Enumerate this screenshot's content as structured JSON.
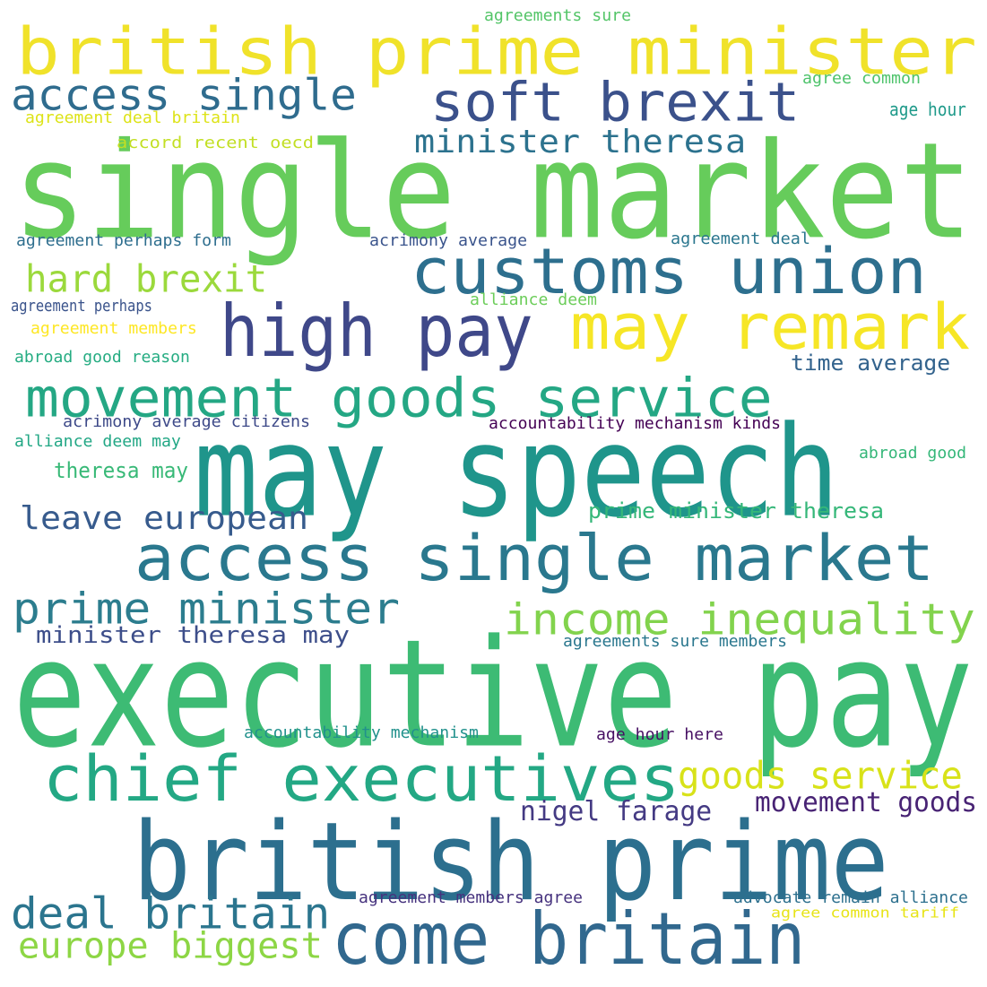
{
  "words": [
    {
      "text": "british prime minister",
      "color": "#f0e22a"
    },
    {
      "text": "single market",
      "color": "#66cc5b"
    },
    {
      "text": "executive pay",
      "color": "#3dbb74"
    },
    {
      "text": "may speech",
      "color": "#1f958b"
    },
    {
      "text": "british prime",
      "color": "#2c6f8e"
    },
    {
      "text": "access single market",
      "color": "#2a788e"
    },
    {
      "text": "customs union",
      "color": "#2d6f8e"
    },
    {
      "text": "chief executives",
      "color": "#23a884"
    },
    {
      "text": "high pay",
      "color": "#3f4889"
    },
    {
      "text": "may remark",
      "color": "#f6e626"
    },
    {
      "text": "come britain",
      "color": "#31688e"
    },
    {
      "text": "movement goods service",
      "color": "#24a784"
    },
    {
      "text": "soft brexit",
      "color": "#3b518b"
    },
    {
      "text": "access single",
      "color": "#2f6c8e"
    },
    {
      "text": "prime minister",
      "color": "#2c7d8e"
    },
    {
      "text": "income inequality",
      "color": "#82d34d"
    },
    {
      "text": "deal britain",
      "color": "#2b758e"
    },
    {
      "text": "goods service",
      "color": "#d8e219"
    },
    {
      "text": "hard brexit",
      "color": "#9bd93c"
    },
    {
      "text": "leave european",
      "color": "#375b8d"
    },
    {
      "text": "europe biggest",
      "color": "#8dd645"
    },
    {
      "text": "minister theresa",
      "color": "#2c728e"
    },
    {
      "text": "minister theresa may",
      "color": "#3d4e8a"
    },
    {
      "text": "nigel farage",
      "color": "#443a83"
    },
    {
      "text": "movement goods",
      "color": "#482374"
    },
    {
      "text": "prime minister theresa",
      "color": "#35b779"
    },
    {
      "text": "theresa may",
      "color": "#38b977"
    },
    {
      "text": "time average",
      "color": "#33638d"
    },
    {
      "text": "agreements sure",
      "color": "#54c568"
    },
    {
      "text": "agree common",
      "color": "#4ec36b"
    },
    {
      "text": "age hour",
      "color": "#1f9a8a"
    },
    {
      "text": "agreement deal britain",
      "color": "#dde318"
    },
    {
      "text": "accord recent oecd",
      "color": "#c2df23"
    },
    {
      "text": "agreement perhaps form",
      "color": "#2e6e8e"
    },
    {
      "text": "acrimony average",
      "color": "#3a548c"
    },
    {
      "text": "agreement deal",
      "color": "#2a768e"
    },
    {
      "text": "alliance deem",
      "color": "#6ccd5a"
    },
    {
      "text": "agreement perhaps",
      "color": "#3a538b"
    },
    {
      "text": "agreement members",
      "color": "#fde725"
    },
    {
      "text": "abroad good reason",
      "color": "#25ac82"
    },
    {
      "text": "acrimony average citizens",
      "color": "#3e4a89"
    },
    {
      "text": "accountability mechanism kinds",
      "color": "#440154"
    },
    {
      "text": "alliance deem may",
      "color": "#22a785"
    },
    {
      "text": "abroad good",
      "color": "#35b779"
    },
    {
      "text": "agreements sure members",
      "color": "#2a778e"
    },
    {
      "text": "accountability mechanism",
      "color": "#21918c"
    },
    {
      "text": "age hour here",
      "color": "#471063"
    },
    {
      "text": "agreement members agree",
      "color": "#46327e"
    },
    {
      "text": "advocate remain alliance",
      "color": "#2d708e"
    },
    {
      "text": "agree common tariff",
      "color": "#e7e419"
    }
  ]
}
